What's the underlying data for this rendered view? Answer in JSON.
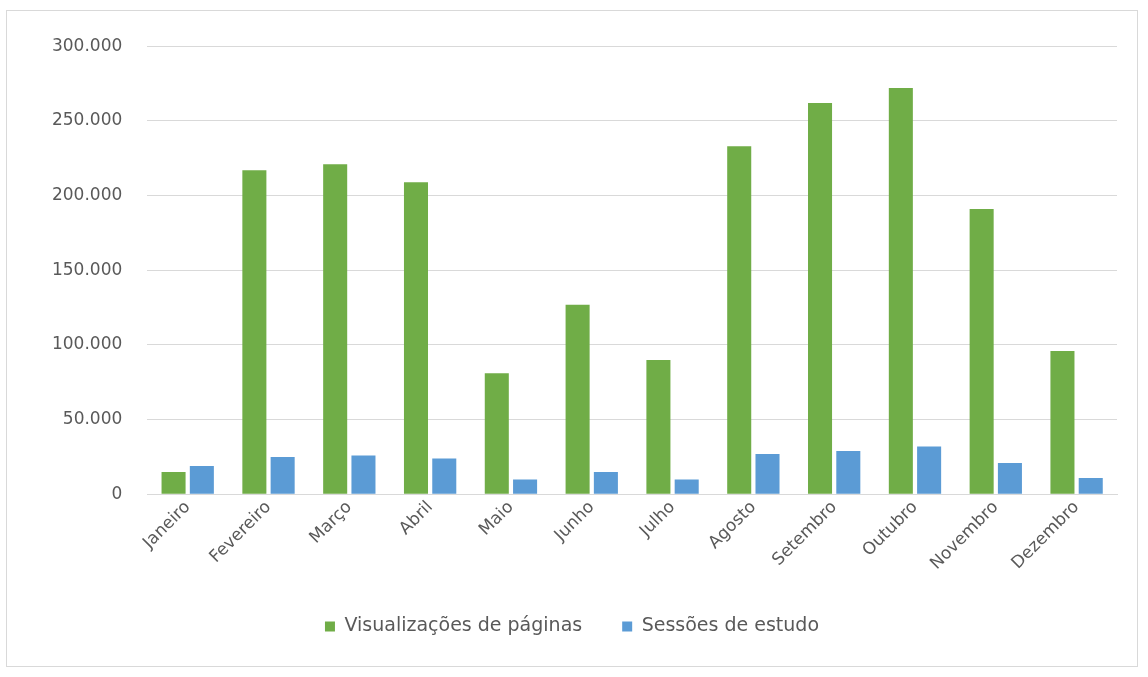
{
  "chart_data": {
    "type": "bar",
    "categories": [
      "Janeiro",
      "Fevereiro",
      "Março",
      "Abril",
      "Maio",
      "Junho",
      "Julho",
      "Agosto",
      "Setembro",
      "Outubro",
      "Novembro",
      "Dezembro"
    ],
    "series": [
      {
        "name": "Visualizações de páginas",
        "color": "#70ad47",
        "values": [
          15000,
          217000,
          221000,
          209000,
          81000,
          127000,
          90000,
          233000,
          262000,
          272000,
          191000,
          96000
        ]
      },
      {
        "name": "Sessões de estudo",
        "color": "#5b9bd5",
        "values": [
          19000,
          25000,
          26000,
          24000,
          10000,
          15000,
          10000,
          27000,
          29000,
          32000,
          21000,
          11000
        ]
      }
    ],
    "ylim": [
      0,
      300000
    ],
    "yticks": [
      {
        "value": 0,
        "label": "0"
      },
      {
        "value": 50000,
        "label": "50.000"
      },
      {
        "value": 100000,
        "label": "100.000"
      },
      {
        "value": 150000,
        "label": "150.000"
      },
      {
        "value": 200000,
        "label": "200.000"
      },
      {
        "value": 250000,
        "label": "250.000"
      },
      {
        "value": 300000,
        "label": "300.000"
      }
    ],
    "grid": "y",
    "legend": "bottom"
  }
}
